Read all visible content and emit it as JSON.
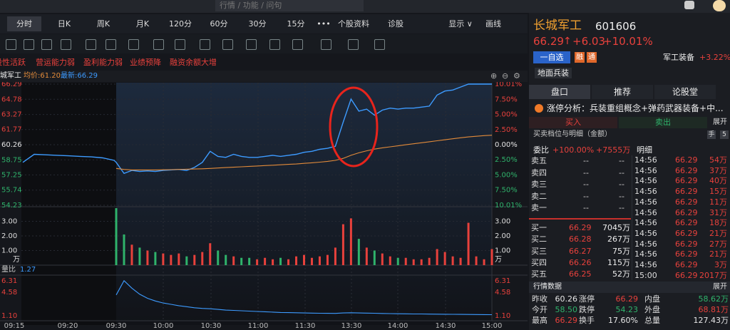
{
  "search_placeholder": "行情 / 功能 / 问句",
  "tabs": [
    "分时",
    "日K",
    "周K",
    "月K",
    "120分",
    "60分",
    "30分",
    "15分",
    "•••",
    "个股资料",
    "诊股",
    "显示 ∨",
    "画线"
  ],
  "tags": [
    "股性活跃",
    "营运能力弱",
    "盈利能力弱",
    "业绩预降",
    "融资余额大增"
  ],
  "chart_header": {
    "name": "城军工",
    "avg": "均价:61.20",
    "latest": "最新:66.29"
  },
  "time_labels": [
    "09:15",
    "09:20",
    "09:30",
    "10:00",
    "10:30",
    "11:00",
    "11:30",
    "13:30",
    "14:00",
    "14:30",
    "15:00"
  ],
  "chart_data": [
    {
      "type": "line",
      "ylim": [
        54.23,
        66.29
      ],
      "yticks": [
        66.29,
        64.78,
        63.27,
        61.77,
        60.26,
        58.75,
        57.25,
        55.74,
        54.23
      ],
      "y2lim": [
        -10.01,
        10.01
      ],
      "y2ticks": [
        {
          "value": 10.01,
          "label": "10.01%"
        },
        {
          "value": 7.5,
          "label": "7.50%"
        },
        {
          "value": 5,
          "label": "5.00%"
        },
        {
          "value": 2.5,
          "label": "2.50%"
        },
        {
          "value": 0,
          "label": "0.00%"
        },
        {
          "value": -2.5,
          "label": "2.50%"
        },
        {
          "value": -5,
          "label": "5.00%"
        },
        {
          "value": -7.5,
          "label": "7.50%"
        },
        {
          "value": -10.01,
          "label": "10.01%"
        }
      ],
      "grid": true,
      "series": [
        {
          "color": "#3d9bff",
          "values": [
            58.5,
            59.3,
            59.25,
            59.2,
            59.15,
            59.1,
            59.05,
            58.95,
            58.7,
            58.5,
            57.4,
            57.7,
            57.6,
            57.65,
            57.6,
            57.7,
            57.75,
            57.8,
            57.7,
            58.0,
            58.5,
            59.6,
            59.1,
            59.0,
            59.3,
            59.1,
            59.0,
            59.0,
            59.1,
            59.2,
            59.1,
            59.2,
            59.3,
            59.5,
            59.6,
            59.8,
            59.9,
            60.1,
            62.5,
            64.8,
            63.6,
            63.8,
            63.2,
            63.7,
            63.9,
            63.8,
            63.9,
            63.9,
            64.0,
            64.1,
            65.2,
            65.6,
            65.7,
            66.0,
            66.29,
            66.29,
            66.29,
            66.29
          ]
        },
        {
          "color": "#e38b3a",
          "values": [
            null,
            null,
            null,
            null,
            null,
            null,
            null,
            null,
            null,
            57.9,
            57.8,
            57.75,
            57.75,
            57.75,
            57.75,
            57.76,
            57.78,
            57.8,
            57.82,
            57.84,
            57.86,
            57.9,
            57.94,
            57.98,
            58.02,
            58.06,
            58.1,
            58.14,
            58.18,
            58.22,
            58.26,
            58.3,
            58.34,
            58.4,
            58.46,
            58.52,
            58.6,
            58.7,
            58.9,
            59.2,
            59.45,
            59.65,
            59.82,
            59.95,
            60.05,
            60.15,
            60.25,
            60.35,
            60.45,
            60.55,
            60.65,
            60.75,
            60.85,
            60.95,
            61.03,
            61.1,
            61.16,
            61.2
          ]
        }
      ]
    },
    {
      "type": "bar",
      "ylim": [
        0,
        4
      ],
      "yticks": [
        {
          "value": 3,
          "label": "3.00"
        },
        {
          "value": 2,
          "label": "2.00"
        },
        {
          "value": 1,
          "label": "1.00"
        }
      ],
      "unit": "万",
      "up_color": "#e8413c",
      "down_color": "#2fb36b",
      "values": [
        3.9,
        2.1,
        1.4,
        1.2,
        1.0,
        0.9,
        0.8,
        0.7,
        0.8,
        0.6,
        0.7,
        0.9,
        1.5,
        1.0,
        0.7,
        0.6,
        0.5,
        0.5,
        0.4,
        0.5,
        0.4,
        0.5,
        0.4,
        0.6,
        0.7,
        0.5,
        0.6,
        0.7,
        1.2,
        2.8,
        3.2,
        1.8,
        1.2,
        1.0,
        0.8,
        0.6,
        0.5,
        0.5,
        0.4,
        0.4,
        0.5,
        1.1,
        0.9,
        0.6,
        0.5,
        2.9,
        0.6,
        0.4,
        1.1
      ]
    },
    {
      "type": "line",
      "title": "量比",
      "latest": 1.27,
      "ylim": [
        0.37,
        7.14
      ],
      "yticks": [
        6.31,
        4.58,
        {
          "value": 1.1,
          "label": "1.10"
        }
      ],
      "color": "#3d9bff",
      "values": [
        4.2,
        6.31,
        5.2,
        4.3,
        3.7,
        3.3,
        3.0,
        2.8,
        2.6,
        2.45,
        2.3,
        2.2,
        2.15,
        2.05,
        1.95,
        1.9,
        1.85,
        1.8,
        1.75,
        1.7,
        1.65,
        1.6,
        1.58,
        1.55,
        1.52,
        1.5,
        1.48,
        1.47,
        1.46,
        1.52,
        1.55,
        1.52,
        1.5,
        1.48,
        1.45,
        1.43,
        1.41,
        1.4,
        1.38,
        1.37,
        1.35,
        1.34,
        1.33,
        1.32,
        1.31,
        1.3,
        1.29,
        1.28,
        1.27
      ]
    }
  ],
  "quote": {
    "name": "长城军工",
    "code": "601606",
    "price": 66.29,
    "change": "+6.03",
    "change_pct": "+10.01%",
    "watch": "一自选",
    "badges": [
      "融",
      "通"
    ],
    "sector": "军工装备",
    "sector_change": "+3.22%",
    "concept": "地面兵装"
  },
  "panel_tabs": [
    "盘口",
    "推荐",
    "论股堂"
  ],
  "limit_analysis": "涨停分析：兵装重组概念+弹药武器装备+中...",
  "trade_tabs": [
    "买入",
    "卖出"
  ],
  "expand": "展开",
  "book_title": "买卖档位与明细（金额）",
  "book_icons": [
    "手",
    "5"
  ],
  "commission": {
    "label": "委比",
    "ratio": "+100.00%",
    "diff": "+7555万"
  },
  "detail_title": "明细",
  "order_book": {
    "sell": [
      {
        "label": "卖五",
        "price": "--",
        "amount": "--"
      },
      {
        "label": "卖四",
        "price": "--",
        "amount": "--"
      },
      {
        "label": "卖三",
        "price": "--",
        "amount": "--"
      },
      {
        "label": "卖二",
        "price": "--",
        "amount": "--"
      },
      {
        "label": "卖一",
        "price": "--",
        "amount": "--"
      }
    ],
    "buy": [
      {
        "label": "买一",
        "price": 66.29,
        "amount": "7045万"
      },
      {
        "label": "买二",
        "price": 66.28,
        "amount": "267万"
      },
      {
        "label": "买三",
        "price": 66.27,
        "amount": "75万"
      },
      {
        "label": "买四",
        "price": 66.26,
        "amount": "115万"
      },
      {
        "label": "买五",
        "price": 66.25,
        "amount": "52万"
      }
    ]
  },
  "trades": [
    {
      "time": "14:56",
      "price": 66.29,
      "amount": "54万"
    },
    {
      "time": "14:56",
      "price": 66.29,
      "amount": "37万"
    },
    {
      "time": "14:56",
      "price": 66.29,
      "amount": "40万"
    },
    {
      "time": "14:56",
      "price": 66.29,
      "amount": "15万"
    },
    {
      "time": "14:56",
      "price": 66.29,
      "amount": "11万"
    },
    {
      "time": "14:56",
      "price": 66.29,
      "amount": "31万"
    },
    {
      "time": "14:56",
      "price": 66.29,
      "amount": "18万"
    },
    {
      "time": "14:56",
      "price": 66.29,
      "amount": "21万"
    },
    {
      "time": "14:56",
      "price": 66.29,
      "amount": "27万"
    },
    {
      "time": "14:56",
      "price": 66.29,
      "amount": "21万"
    },
    {
      "time": "14:56",
      "price": 66.29,
      "amount": "3万"
    },
    {
      "time": "15:00",
      "price": 66.29,
      "amount": "2017万"
    }
  ],
  "market_data": {
    "title": "行情数据",
    "expand": "展开",
    "rows": [
      [
        {
          "label": "昨收",
          "value": "60.26",
          "color": "#e6e6e6"
        },
        {
          "label": "涨停",
          "value": "66.29",
          "color": "#e8413c"
        },
        {
          "label": "内盘",
          "value": "58.62万",
          "color": "#2fb36b"
        }
      ],
      [
        {
          "label": "今开",
          "value": "58.50",
          "color": "#2fb36b"
        },
        {
          "label": "跌停",
          "value": "54.23",
          "color": "#2fb36b"
        },
        {
          "label": "外盘",
          "value": "68.81万",
          "color": "#e8413c"
        }
      ],
      [
        {
          "label": "最高",
          "value": "66.29",
          "color": "#e8413c"
        },
        {
          "label": "换手",
          "value": "17.60%",
          "color": "#e6e6e6"
        },
        {
          "label": "总量",
          "value": "127.43万",
          "color": "#e6e6e6"
        }
      ]
    ]
  }
}
